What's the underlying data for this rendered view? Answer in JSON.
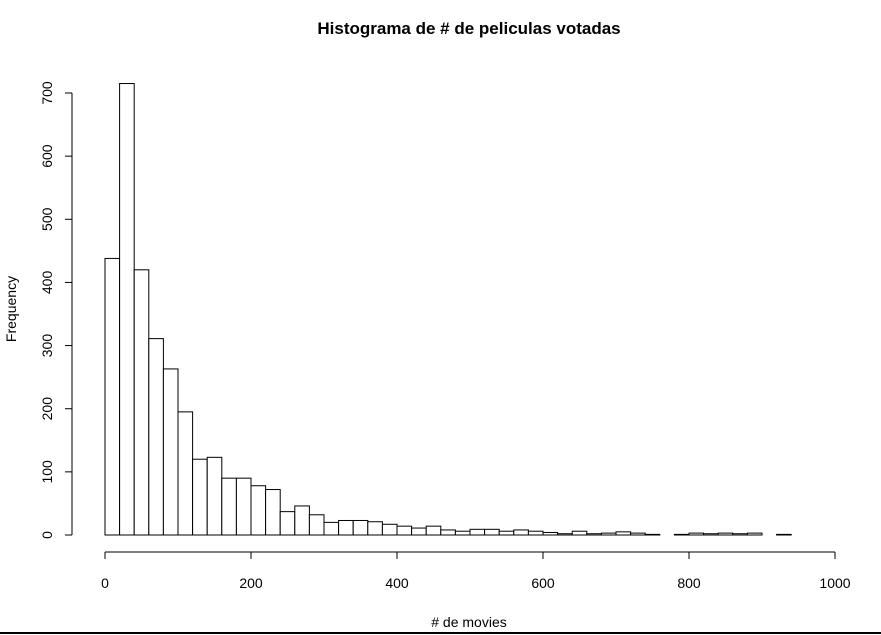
{
  "chart_data": {
    "type": "bar",
    "title": "Histograma de # de peliculas votadas",
    "xlabel": "# de movies",
    "ylabel": "Frequency",
    "xlim": [
      0,
      1000
    ],
    "ylim": [
      0,
      700
    ],
    "bin_width": 20,
    "x_ticks": [
      0,
      200,
      400,
      600,
      800,
      1000
    ],
    "y_ticks": [
      0,
      100,
      200,
      300,
      400,
      500,
      600,
      700
    ],
    "grid": false,
    "bins_start": [
      0,
      20,
      40,
      60,
      80,
      100,
      120,
      140,
      160,
      180,
      200,
      220,
      240,
      260,
      280,
      300,
      320,
      340,
      360,
      380,
      400,
      420,
      440,
      460,
      480,
      500,
      520,
      540,
      560,
      580,
      600,
      620,
      640,
      660,
      680,
      700,
      720,
      740,
      760,
      780,
      800,
      820,
      840,
      860,
      880,
      900,
      920,
      940,
      960,
      980
    ],
    "values": [
      438,
      715,
      420,
      311,
      263,
      195,
      120,
      123,
      90,
      90,
      78,
      72,
      37,
      46,
      32,
      20,
      23,
      23,
      21,
      17,
      14,
      11,
      14,
      8,
      6,
      9,
      9,
      6,
      8,
      6,
      4,
      2,
      6,
      2,
      3,
      5,
      3,
      1,
      0,
      1,
      3,
      2,
      3,
      2,
      3,
      0,
      1,
      0,
      0,
      0
    ]
  }
}
